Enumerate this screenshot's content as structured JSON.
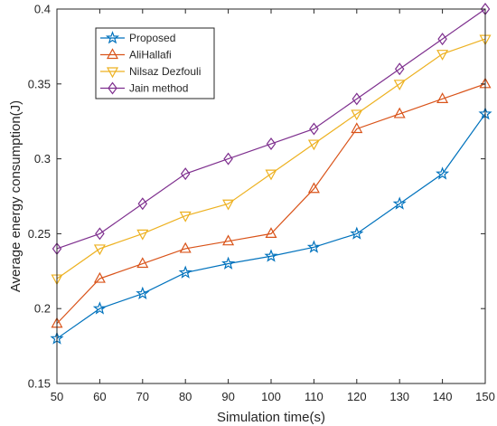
{
  "chart_data": {
    "type": "line",
    "xlabel": "Simulation time(s)",
    "ylabel": "Average energy consumption(J)",
    "x": [
      50,
      60,
      70,
      80,
      90,
      100,
      110,
      120,
      130,
      140,
      150
    ],
    "xlim": [
      50,
      150
    ],
    "ylim": [
      0.15,
      0.4
    ],
    "xticks": [
      "50",
      "60",
      "70",
      "80",
      "90",
      "100",
      "110",
      "120",
      "130",
      "140",
      "150"
    ],
    "yticks": [
      "0.15",
      "0.2",
      "0.25",
      "0.3",
      "0.35",
      "0.4"
    ],
    "grid": false,
    "legend_position": "top-left",
    "series": [
      {
        "name": "Proposed",
        "color": "#0072BD",
        "marker": "star",
        "values": [
          0.18,
          0.2,
          0.21,
          0.224,
          0.23,
          0.235,
          0.241,
          0.25,
          0.27,
          0.29,
          0.33
        ]
      },
      {
        "name": "AliHallafi",
        "color": "#D95319",
        "marker": "triangle-up",
        "values": [
          0.19,
          0.22,
          0.23,
          0.24,
          0.245,
          0.25,
          0.28,
          0.32,
          0.33,
          0.34,
          0.35
        ]
      },
      {
        "name": "Nilsaz Dezfouli",
        "color": "#EDB120",
        "marker": "triangle-down",
        "values": [
          0.22,
          0.24,
          0.25,
          0.262,
          0.27,
          0.29,
          0.31,
          0.33,
          0.35,
          0.37,
          0.38
        ]
      },
      {
        "name": "Jain method",
        "color": "#7E2F8E",
        "marker": "diamond",
        "values": [
          0.24,
          0.25,
          0.27,
          0.29,
          0.3,
          0.31,
          0.32,
          0.34,
          0.36,
          0.38,
          0.4
        ]
      }
    ]
  }
}
